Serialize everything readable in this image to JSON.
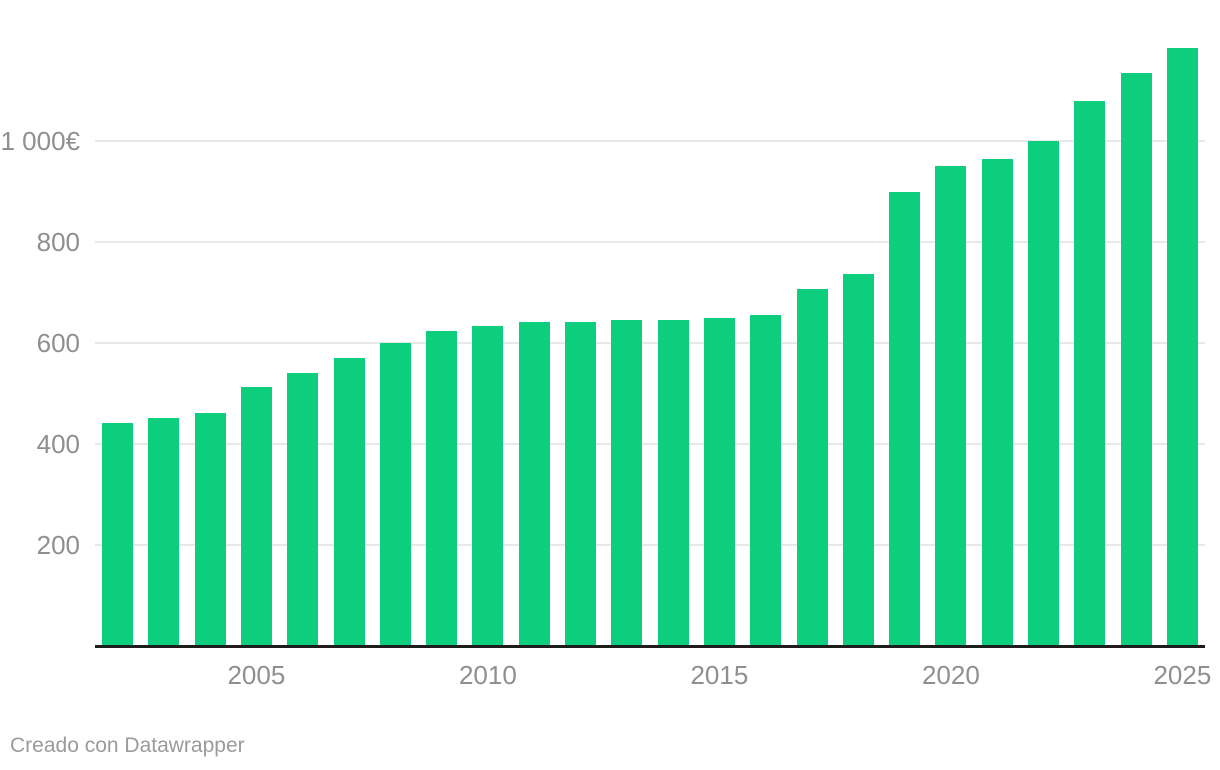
{
  "chart_data": {
    "type": "bar",
    "categories": [
      2002,
      2003,
      2004,
      2005,
      2006,
      2007,
      2008,
      2009,
      2010,
      2011,
      2012,
      2013,
      2014,
      2015,
      2016,
      2017,
      2018,
      2019,
      2020,
      2021,
      2022,
      2023,
      2024,
      2025
    ],
    "values": [
      442.2,
      451.2,
      460.5,
      513,
      540.9,
      570.6,
      600,
      624,
      633.3,
      641.4,
      641.4,
      645.3,
      645.3,
      648.6,
      655.2,
      707.7,
      735.9,
      900,
      950,
      965,
      1000,
      1080,
      1134,
      1184
    ],
    "title": "",
    "xlabel": "",
    "ylabel": "",
    "unit": "€",
    "ylim": [
      0,
      1280
    ],
    "y_ticks": [
      {
        "value": 200,
        "label": "200"
      },
      {
        "value": 400,
        "label": "400"
      },
      {
        "value": 600,
        "label": "600"
      },
      {
        "value": 800,
        "label": "800"
      },
      {
        "value": 1000,
        "label": "1 000€"
      }
    ],
    "x_ticks": [
      2005,
      2010,
      2015,
      2020,
      2025
    ],
    "grid": "horizontal-behind-bars",
    "legend": "none"
  },
  "colors": {
    "bar": "#0dce7c",
    "gridline": "#e8e8e8",
    "axis_line": "#1d1d1d",
    "tick_text": "#8f8f8f",
    "attribution_text": "#9b9b9b",
    "background": "#ffffff"
  },
  "footer": {
    "attribution": "Creado con Datawrapper"
  }
}
